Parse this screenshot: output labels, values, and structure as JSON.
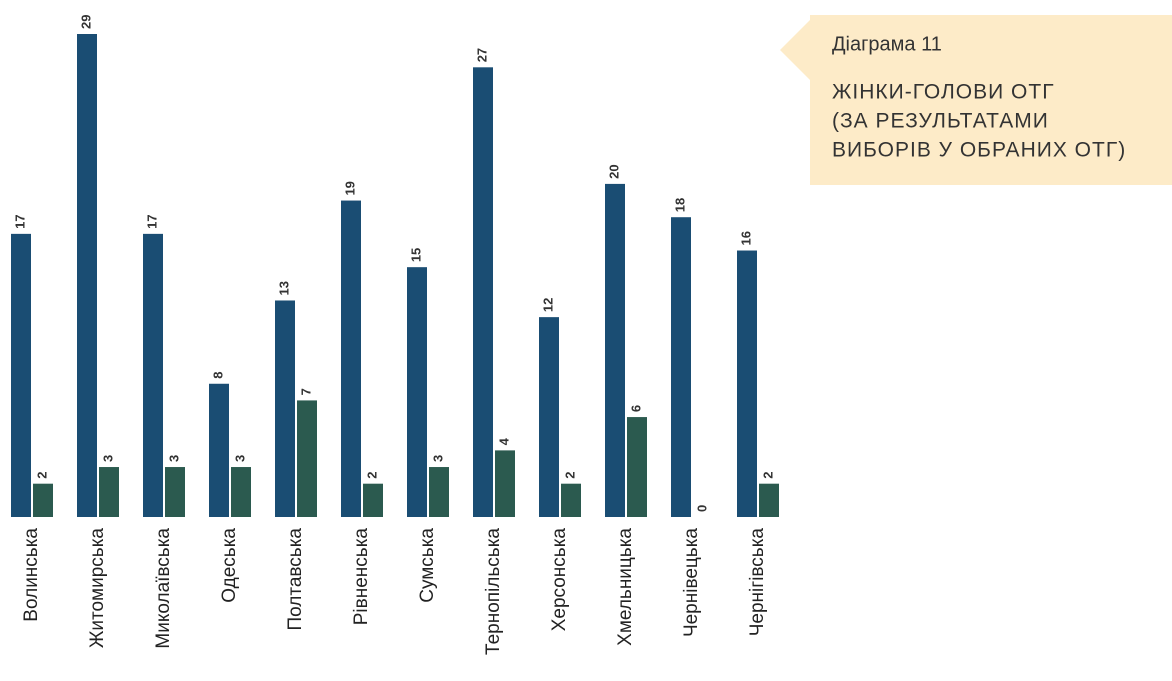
{
  "chart_data": {
    "type": "bar",
    "caption": "Діаграма 11",
    "title": [
      "ЖІНКИ-ГОЛОВИ ОТГ",
      "(ЗА РЕЗУЛЬТАТАМИ",
      "ВИБОРІВ У ОБРАНИХ ОТГ)"
    ],
    "categories": [
      "Волинська",
      "Житомирська",
      "Миколаївська",
      "Одеська",
      "Полтавська",
      "Рівненська",
      "Сумська",
      "Тернопільська",
      "Херсонська",
      "Хмельницька",
      "Чернівецька",
      "Чернігівська"
    ],
    "series": [
      {
        "color": "#1a4d73",
        "values": [
          17,
          29,
          17,
          8,
          13,
          19,
          15,
          27,
          12,
          20,
          18,
          16
        ]
      },
      {
        "color": "#2b5a4f",
        "values": [
          2,
          3,
          3,
          3,
          7,
          2,
          3,
          4,
          2,
          6,
          0,
          2
        ]
      }
    ]
  }
}
